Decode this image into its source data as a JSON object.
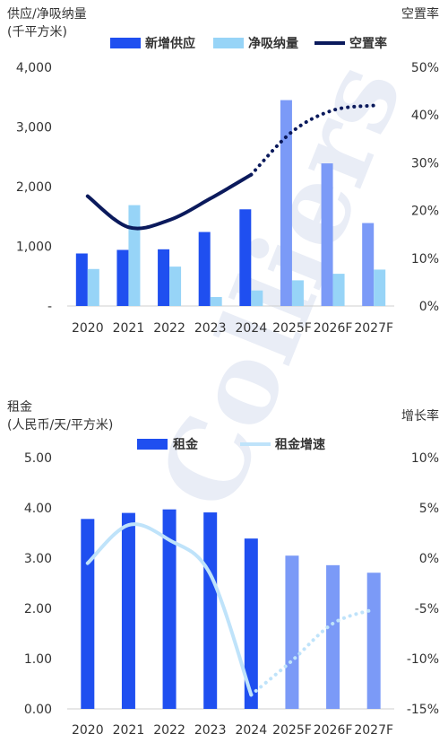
{
  "watermark": "Colliers",
  "chart_data": [
    {
      "type": "bar",
      "y_axis_title_line1": "供应/净吸纳量",
      "y_axis_title_line2": "(千平方米)",
      "y2_axis_title": "空置率",
      "categories": [
        "2020",
        "2021",
        "2022",
        "2023",
        "2024",
        "2025F",
        "2026F",
        "2027F"
      ],
      "ylim": [
        0,
        4000
      ],
      "y_ticks": [
        "-",
        "1,000",
        "2,000",
        "3,000",
        "4,000"
      ],
      "y2lim": [
        0,
        50
      ],
      "y2_ticks": [
        "0%",
        "10%",
        "20%",
        "30%",
        "40%",
        "50%"
      ],
      "forecast_from_index": 5,
      "series": [
        {
          "name": "新增供应",
          "kind": "bar",
          "color": "#1f4ff0",
          "forecast_color": "#7b9af7",
          "values": [
            880,
            940,
            950,
            1240,
            1620,
            3450,
            2390,
            1390
          ]
        },
        {
          "name": "净吸纳量",
          "kind": "bar",
          "color": "#97d4f7",
          "values": [
            620,
            1690,
            660,
            150,
            260,
            430,
            540,
            610
          ]
        },
        {
          "name": "空置率",
          "kind": "line",
          "axis": "y2",
          "color": "#0b1a5c",
          "values": [
            23,
            16.5,
            18,
            22.5,
            27.5,
            36.5,
            41,
            42
          ]
        }
      ],
      "legend_position": "top",
      "grid": false
    },
    {
      "type": "bar",
      "y_axis_title_line1": "租金",
      "y_axis_title_line2": "(人民币/天/平方米)",
      "y2_axis_title": "增长率",
      "categories": [
        "2020",
        "2021",
        "2022",
        "2023",
        "2024",
        "2025F",
        "2026F",
        "2027F"
      ],
      "ylim": [
        0,
        5
      ],
      "y_ticks": [
        "0.00",
        "1.00",
        "2.00",
        "3.00",
        "4.00",
        "5.00"
      ],
      "y2lim": [
        -15,
        10
      ],
      "y2_ticks": [
        "-15%",
        "-10%",
        "-5%",
        "0%",
        "5%",
        "10%"
      ],
      "forecast_from_index": 5,
      "series": [
        {
          "name": "租金",
          "kind": "bar",
          "color": "#1f4ff0",
          "forecast_color": "#7b9af7",
          "values": [
            3.78,
            3.9,
            3.97,
            3.91,
            3.39,
            3.05,
            2.86,
            2.71
          ]
        },
        {
          "name": "租金增速",
          "kind": "line",
          "axis": "y2",
          "color": "#bfe3fa",
          "values": [
            -0.5,
            3.3,
            1.8,
            -1.6,
            -13.6,
            -10.2,
            -6.5,
            -5.1
          ]
        }
      ],
      "legend_position": "top",
      "grid": false
    }
  ]
}
